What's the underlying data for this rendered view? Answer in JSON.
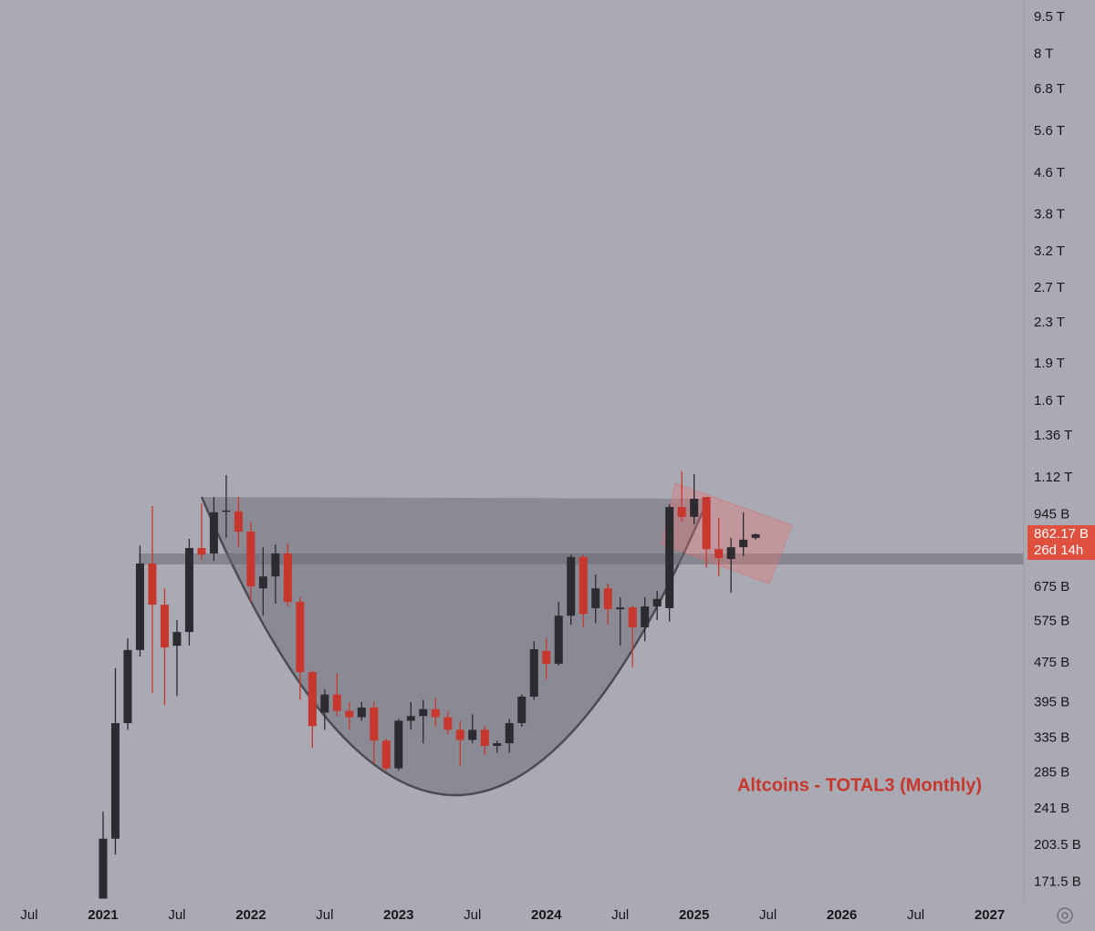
{
  "chart_data": {
    "type": "candlestick",
    "title": "Altcoins - TOTAL3 (Monthly)",
    "log_scale": true,
    "up_color": "#2b2b30",
    "down_color": "#c8372d",
    "x": [
      "2021-01",
      "2021-02",
      "2021-03",
      "2021-04",
      "2021-05",
      "2021-06",
      "2021-07",
      "2021-08",
      "2021-09",
      "2021-10",
      "2021-11",
      "2021-12",
      "2022-01",
      "2022-02",
      "2022-03",
      "2022-04",
      "2022-05",
      "2022-06",
      "2022-07",
      "2022-08",
      "2022-09",
      "2022-10",
      "2022-11",
      "2022-12",
      "2023-01",
      "2023-02",
      "2023-03",
      "2023-04",
      "2023-05",
      "2023-06",
      "2023-07",
      "2023-08",
      "2023-09",
      "2023-10",
      "2023-11",
      "2023-12",
      "2024-01",
      "2024-02",
      "2024-03",
      "2024-04",
      "2024-05",
      "2024-06",
      "2024-07",
      "2024-08",
      "2024-09",
      "2024-10",
      "2024-11",
      "2024-12",
      "2025-01",
      "2025-02",
      "2025-03",
      "2025-04",
      "2025-05",
      "2025-06"
    ],
    "open": [
      159,
      210,
      359,
      504,
      753,
      622,
      514,
      548,
      809,
      789,
      959,
      959,
      873,
      671,
      709,
      789,
      630,
      455,
      377,
      410,
      380,
      369,
      386,
      331,
      291,
      363,
      371,
      383,
      369,
      348,
      332,
      348,
      323,
      327,
      359,
      406,
      502,
      473,
      591,
      776,
      612,
      671,
      609,
      614,
      560,
      617,
      612,
      979,
      935,
      1025,
      805,
      769,
      812,
      848
    ],
    "high": [
      238,
      463,
      532,
      819,
      983,
      671,
      579,
      844,
      995,
      1025,
      1135,
      1025,
      911,
      812,
      823,
      826,
      644,
      458,
      420,
      453,
      396,
      396,
      396,
      334,
      366,
      396,
      400,
      404,
      379,
      363,
      374,
      354,
      331,
      366,
      410,
      525,
      532,
      630,
      785,
      785,
      715,
      686,
      644,
      619,
      644,
      663,
      991,
      1155,
      1140,
      1025,
      931,
      848,
      955,
      866
    ],
    "low": [
      159,
      195,
      348,
      489,
      413,
      390,
      407,
      514,
      766,
      762,
      848,
      812,
      630,
      591,
      625,
      617,
      400,
      320,
      348,
      371,
      348,
      363,
      297,
      288,
      288,
      348,
      327,
      353,
      341,
      294,
      327,
      310,
      313,
      313,
      353,
      400,
      440,
      469,
      567,
      560,
      571,
      567,
      514,
      465,
      525,
      579,
      575,
      915,
      903,
      739,
      709,
      657,
      779,
      841
    ],
    "close": [
      210,
      359,
      504,
      753,
      622,
      510,
      548,
      809,
      785,
      955,
      963,
      873,
      677,
      709,
      789,
      630,
      455,
      354,
      410,
      380,
      369,
      386,
      331,
      291,
      363,
      371,
      383,
      369,
      348,
      332,
      348,
      323,
      327,
      359,
      406,
      506,
      473,
      591,
      776,
      596,
      671,
      609,
      614,
      560,
      617,
      639,
      979,
      935,
      1017,
      805,
      772,
      812,
      841,
      862.17
    ],
    "last_price": {
      "value": 862.17,
      "label": "862.17 B"
    },
    "countdown": "26d 14h",
    "xlim": [
      "2020-05",
      "2027-04"
    ],
    "xticks": [
      {
        "value": "2020-07",
        "label": "Jul"
      },
      {
        "value": "2021-01",
        "label": "2021"
      },
      {
        "value": "2021-07",
        "label": "Jul"
      },
      {
        "value": "2022-01",
        "label": "2022"
      },
      {
        "value": "2022-07",
        "label": "Jul"
      },
      {
        "value": "2023-01",
        "label": "2023"
      },
      {
        "value": "2023-07",
        "label": "Jul"
      },
      {
        "value": "2024-01",
        "label": "2024"
      },
      {
        "value": "2024-07",
        "label": "Jul"
      },
      {
        "value": "2025-01",
        "label": "2025"
      },
      {
        "value": "2025-07",
        "label": "Jul"
      },
      {
        "value": "2026-01",
        "label": "2026"
      },
      {
        "value": "2026-07",
        "label": "Jul"
      },
      {
        "value": "2027-01",
        "label": "2027"
      }
    ],
    "ylim": [
      156,
      10290
    ],
    "yticks": [
      {
        "value": 9500,
        "label": "9.5 T"
      },
      {
        "value": 8000,
        "label": "8 T"
      },
      {
        "value": 6800,
        "label": "6.8 T"
      },
      {
        "value": 5600,
        "label": "5.6 T"
      },
      {
        "value": 4600,
        "label": "4.6 T"
      },
      {
        "value": 3800,
        "label": "3.8 T"
      },
      {
        "value": 3200,
        "label": "3.2 T"
      },
      {
        "value": 2700,
        "label": "2.7 T"
      },
      {
        "value": 2300,
        "label": "2.3 T"
      },
      {
        "value": 1900,
        "label": "1.9 T"
      },
      {
        "value": 1600,
        "label": "1.6 T"
      },
      {
        "value": 1360,
        "label": "1.36 T"
      },
      {
        "value": 1120,
        "label": "1.12 T"
      },
      {
        "value": 945,
        "label": "945 B"
      },
      {
        "value": 675,
        "label": "675 B"
      },
      {
        "value": 575,
        "label": "575 B"
      },
      {
        "value": 475,
        "label": "475 B"
      },
      {
        "value": 395,
        "label": "395 B"
      },
      {
        "value": 335,
        "label": "335 B"
      },
      {
        "value": 285,
        "label": "285 B"
      },
      {
        "value": 241,
        "label": "241 B"
      },
      {
        "value": 203.5,
        "label": "203.5 B"
      },
      {
        "value": 171.5,
        "label": "171.5 B"
      }
    ]
  }
}
